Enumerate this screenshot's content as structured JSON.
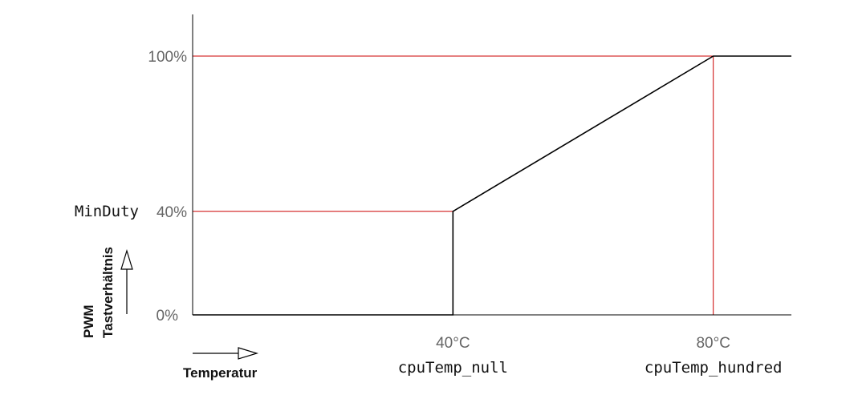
{
  "chart_data": {
    "type": "line",
    "x_axis": {
      "title": "Temperatur",
      "ticks": [
        {
          "value": 40,
          "label": "40°C",
          "variable": "cpuTemp_null"
        },
        {
          "value": 80,
          "label": "80°C",
          "variable": "cpuTemp_hundred"
        }
      ]
    },
    "y_axis": {
      "title_line1": "PWM",
      "title_line2": "Tastverhältnis",
      "ticks": [
        {
          "value": 0,
          "label": "0%"
        },
        {
          "value": 40,
          "label": "40%",
          "variable": "MinDuty"
        },
        {
          "value": 100,
          "label": "100%"
        }
      ]
    },
    "series": [
      {
        "points": [
          {
            "x": 0,
            "y": 0
          },
          {
            "x": 40,
            "y": 0
          },
          {
            "x": 40,
            "y": 40
          },
          {
            "x": 80,
            "y": 100
          },
          {
            "x": 92,
            "y": 100
          }
        ]
      }
    ],
    "xlim": [
      0,
      92
    ],
    "ylim": [
      0,
      100
    ],
    "colors": {
      "curve": "#000000",
      "guides": "#cc0000",
      "axes": "#000000",
      "tick_labels": "#666666"
    }
  }
}
